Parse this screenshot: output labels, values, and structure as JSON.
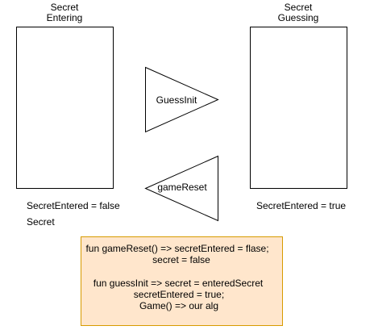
{
  "states": {
    "left": {
      "title_line1": "Secret",
      "title_line2": "Entering",
      "status": "SecretEntered = false",
      "extra": "Secret"
    },
    "right": {
      "title_line1": "Secret",
      "title_line2": "Guessing",
      "status": "SecretEntered = true"
    }
  },
  "transitions": {
    "forward": {
      "label": "GuessInit"
    },
    "backward": {
      "label": "gameReset"
    }
  },
  "note": {
    "lines": [
      "fun gameReset() => secretEntered = flase;",
      "secret = false",
      "",
      "fun guessInit => secret = enteredSecret",
      "secretEntered = true;",
      "Game() => our alg"
    ]
  },
  "colors": {
    "stroke": "#000000",
    "note_fill": "#ffe6cc",
    "note_stroke": "#d79b00"
  }
}
